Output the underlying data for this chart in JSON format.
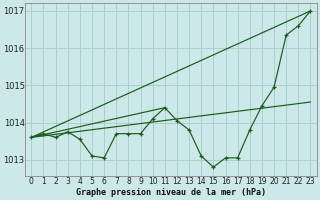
{
  "xlabel": "Graphe pression niveau de la mer (hPa)",
  "background_color": "#cce8e8",
  "grid_color": "#aad0d0",
  "line_color": "#1a5c1a",
  "x": [
    0,
    1,
    2,
    3,
    4,
    5,
    6,
    7,
    8,
    9,
    10,
    11,
    12,
    13,
    14,
    15,
    16,
    17,
    18,
    19,
    20,
    21,
    22,
    23
  ],
  "series1": [
    1013.6,
    1013.7,
    1013.6,
    1013.75,
    1013.55,
    1013.1,
    1013.05,
    1013.7,
    1013.7,
    1013.7,
    1014.1,
    1014.4,
    1014.05,
    1013.8,
    1013.1,
    1012.8,
    1013.05,
    1013.05,
    1013.8,
    1014.45,
    1014.95,
    1016.35,
    1016.6,
    1017.0
  ],
  "trend_line1": [
    [
      0,
      23
    ],
    [
      1013.6,
      1017.0
    ]
  ],
  "trend_line2": [
    [
      0,
      23
    ],
    [
      1013.6,
      1014.55
    ]
  ],
  "trend_line3": [
    [
      0,
      11
    ],
    [
      1013.6,
      1014.4
    ]
  ],
  "ylim": [
    1012.55,
    1017.2
  ],
  "yticks": [
    1013,
    1014,
    1015,
    1016,
    1017
  ],
  "xticks": [
    0,
    1,
    2,
    3,
    4,
    5,
    6,
    7,
    8,
    9,
    10,
    11,
    12,
    13,
    14,
    15,
    16,
    17,
    18,
    19,
    20,
    21,
    22,
    23
  ],
  "xlabel_fontsize": 6.0,
  "tick_fontsize": 5.5
}
